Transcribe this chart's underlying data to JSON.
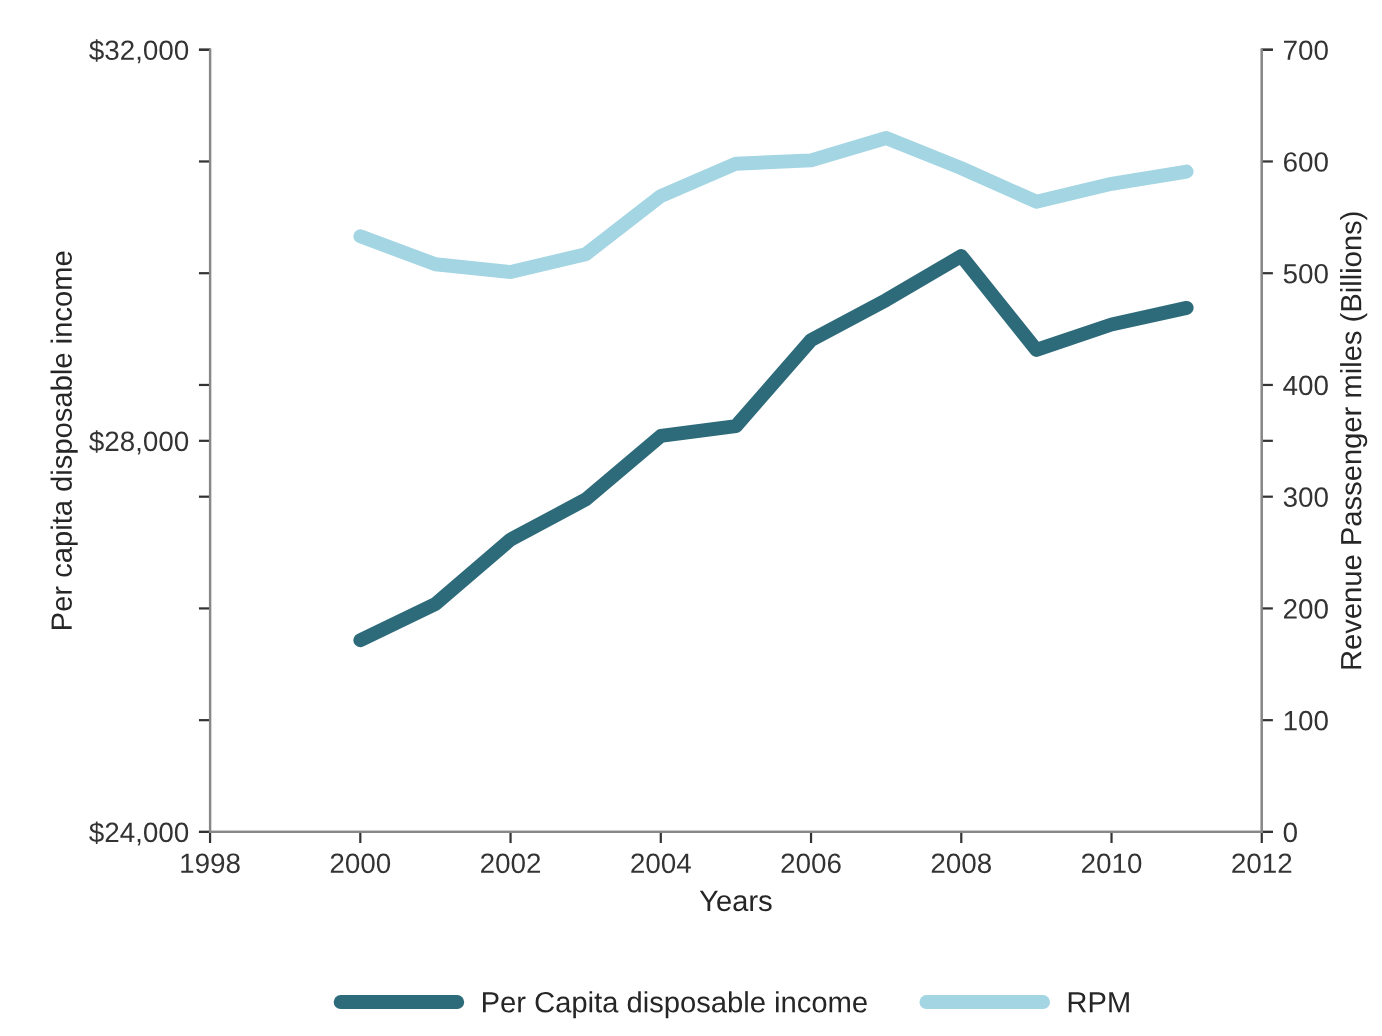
{
  "chart_data": {
    "type": "line",
    "xlabel": "Years",
    "ylabel": "Per capita disposable income",
    "y2label": "Revenue Passenger miles (Billions)",
    "x": [
      2000,
      2001,
      2002,
      2003,
      2004,
      2005,
      2006,
      2007,
      2008,
      2009,
      2010,
      2011
    ],
    "series": [
      {
        "name": "Per Capita disposable income",
        "color": "#2e6b7a",
        "values": [
          25960,
          26330,
          26990,
          27400,
          28050,
          28150,
          29030,
          29440,
          29890,
          28930,
          29190,
          29360
        ]
      },
      {
        "name": "RPM",
        "color": "#a3d5e3",
        "axis": "y2",
        "values": [
          533,
          508,
          501,
          517,
          569,
          598,
          601,
          621,
          594,
          564,
          580,
          591
        ]
      }
    ],
    "xlim": [
      1998,
      2012
    ],
    "xticks": [
      1998,
      2000,
      2002,
      2004,
      2006,
      2008,
      2010,
      2012
    ],
    "ylim": [
      24000,
      32000
    ],
    "yticks": [
      {
        "value": 24000,
        "label": "$24,000"
      },
      {
        "value": 28000,
        "label": "$28,000"
      },
      {
        "value": 32000,
        "label": "$32,000"
      }
    ],
    "y2lim": [
      0,
      700
    ],
    "y2ticks": [
      0,
      100,
      200,
      300,
      400,
      500,
      600,
      700
    ],
    "legend": "bottom",
    "grid": false,
    "marker": "none",
    "line_style": "solid"
  }
}
